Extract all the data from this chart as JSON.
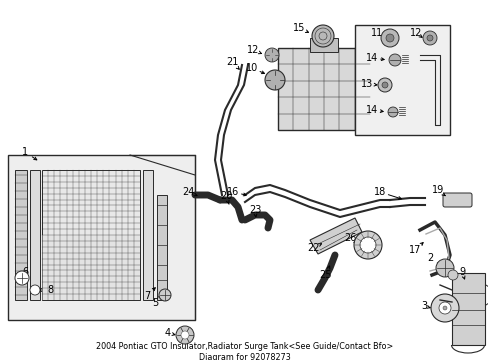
{
  "title": "2004 Pontiac GTO Insulator,Radiator Surge Tank<See Guide/Contact Bfo> Diagram for 92078273",
  "bg_color": "#ffffff",
  "line_color": "#2a2a2a",
  "label_color": "#000000",
  "font_size_label": 7.0,
  "font_size_title": 5.8,
  "fig_width": 4.89,
  "fig_height": 3.6,
  "dpi": 100
}
